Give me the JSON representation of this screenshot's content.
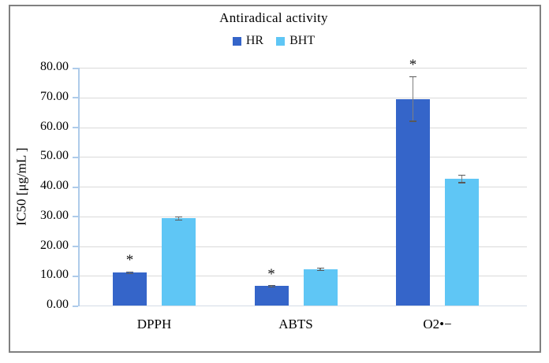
{
  "chart_data": {
    "type": "bar",
    "title": "Antiradical activity",
    "categories": [
      "DPPH",
      "ABTS",
      "O2•−"
    ],
    "series": [
      {
        "name": "HR",
        "color": "#3565c9",
        "values": [
          11.0,
          6.5,
          69.5
        ],
        "errors": [
          0.3,
          0.25,
          7.5
        ],
        "sig": [
          "*",
          "*",
          "*"
        ]
      },
      {
        "name": "BHT",
        "color": "#5fc6f5",
        "values": [
          29.3,
          12.2,
          42.6
        ],
        "errors": [
          0.5,
          0.4,
          1.3
        ],
        "sig": [
          "",
          "",
          ""
        ]
      }
    ],
    "xlabel": "",
    "ylabel": "IC50 [μg/mL ]",
    "ylim": [
      0,
      80
    ],
    "ytick_step": 10,
    "ytick_labels": [
      "0.00",
      "10.00",
      "20.00",
      "30.00",
      "40.00",
      "50.00",
      "60.00",
      "70.00",
      "80.00"
    ],
    "grid": true,
    "legend_position": "top",
    "significance_marker": "*"
  },
  "colors": {
    "gridline": "#d9d9d9",
    "axis_line": "#aecbea",
    "error_bar": "#7f7f7f",
    "frame_border": "#808080",
    "text": "#000000"
  }
}
